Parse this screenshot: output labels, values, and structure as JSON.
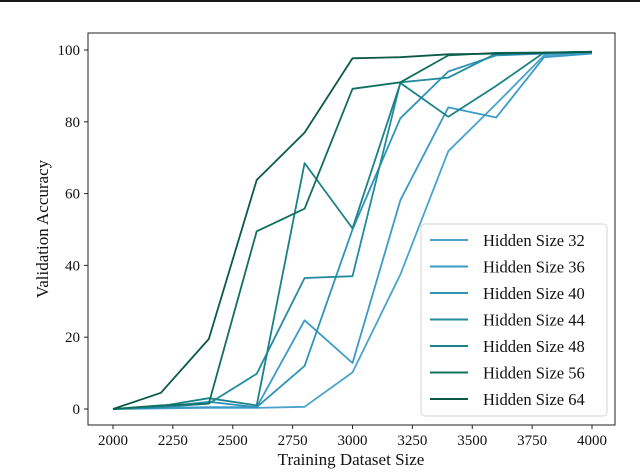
{
  "chart_data": {
    "type": "line",
    "title": "",
    "xlabel": "Training Dataset Size",
    "ylabel": "Validation Accuracy",
    "xlim": [
      1900,
      4050
    ],
    "ylim": [
      -5,
      105
    ],
    "grid": false,
    "legend_position": "lower right",
    "x_ticks": [
      "2000",
      "2250",
      "2500",
      "2750",
      "3000",
      "3250",
      "3500",
      "3750",
      "4000"
    ],
    "y_ticks": [
      "0",
      "20",
      "40",
      "60",
      "80",
      "100"
    ],
    "x": [
      2000,
      2200,
      2400,
      2600,
      2800,
      3000,
      3200,
      3400,
      3600,
      3800,
      4000
    ],
    "series": [
      {
        "name": "Hidden Size 32",
        "color": "#4aa3cc",
        "values": [
          0,
          0.2,
          0.3,
          0.3,
          0.6,
          10.2,
          37.5,
          71.8,
          85,
          98.5,
          99.2
        ]
      },
      {
        "name": "Hidden Size 36",
        "color": "#3b9bc6",
        "values": [
          0,
          0.3,
          0.5,
          0.5,
          24.7,
          12.8,
          58.2,
          84,
          81.2,
          98,
          99
        ]
      },
      {
        "name": "Hidden Size 40",
        "color": "#2f94b8",
        "values": [
          0,
          0.5,
          2,
          0.5,
          12,
          50,
          81,
          94,
          98.5,
          99,
          99.3
        ]
      },
      {
        "name": "Hidden Size 44",
        "color": "#238b9e",
        "values": [
          0,
          0.5,
          1.5,
          9.8,
          36.5,
          37,
          91,
          92.3,
          99,
          99.2,
          99.5
        ]
      },
      {
        "name": "Hidden Size 48",
        "color": "#1a8288",
        "values": [
          0,
          0.8,
          3,
          1,
          68.5,
          50.3,
          90.8,
          81.4,
          90,
          99.3,
          99.4
        ]
      },
      {
        "name": "Hidden Size 56",
        "color": "#10705e",
        "values": [
          0,
          1,
          1.5,
          49.5,
          55.8,
          89.2,
          91,
          98.5,
          99.2,
          99.3,
          99.5
        ]
      },
      {
        "name": "Hidden Size 64",
        "color": "#0b5a48",
        "values": [
          0,
          4.5,
          19.5,
          63.8,
          77,
          97.7,
          98,
          98.8,
          99,
          99.2,
          99.5
        ]
      }
    ]
  }
}
